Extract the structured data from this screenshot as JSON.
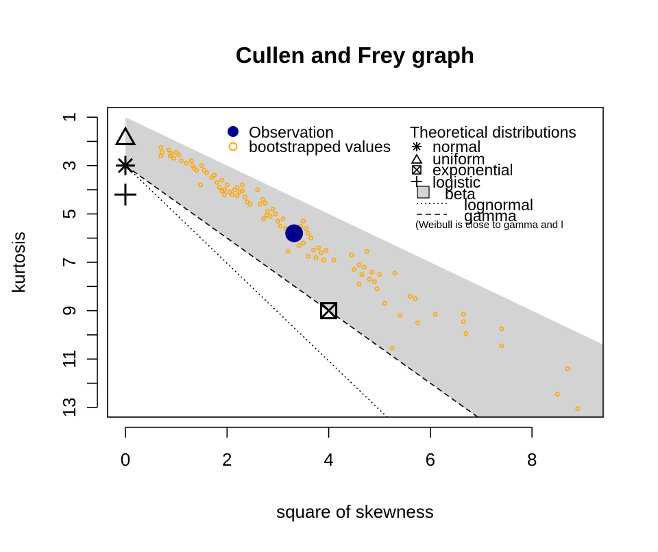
{
  "chart_data": {
    "type": "scatter",
    "title": "Cullen and Frey graph",
    "xlabel": "square of skewness",
    "ylabel": "kurtosis",
    "xlim": [
      -0.35,
      9.4
    ],
    "ylim": [
      13.4,
      0.6
    ],
    "y_axis_inverted": true,
    "x_ticks": [
      0,
      2,
      4,
      6,
      8
    ],
    "y_ticks": [
      1,
      3,
      5,
      7,
      9,
      11,
      13
    ],
    "x_tick_labels": [
      "0",
      "2",
      "4",
      "6",
      "8"
    ],
    "y_tick_labels": [
      "1",
      "3",
      "5",
      "7",
      "9",
      "11",
      "13"
    ],
    "grid": false,
    "colors": {
      "observation": "#00008b",
      "bootstrap": "#ffa500",
      "beta_region": "#d3d3d3",
      "axis": "#000000"
    },
    "observation": {
      "x": 3.32,
      "y": 5.8
    },
    "theoretical_points": {
      "normal": {
        "x": 0,
        "y": 3
      },
      "uniform": {
        "x": 0,
        "y": 1.8
      },
      "exponential": {
        "x": 4,
        "y": 9
      },
      "logistic": {
        "x": 0,
        "y": 4.2
      }
    },
    "bootstrapped_values": [
      [
        0.7,
        2.25
      ],
      [
        0.72,
        2.45
      ],
      [
        0.7,
        2.6
      ],
      [
        0.85,
        2.35
      ],
      [
        0.9,
        2.5
      ],
      [
        0.88,
        2.6
      ],
      [
        1.0,
        2.45
      ],
      [
        1.05,
        2.55
      ],
      [
        0.95,
        2.7
      ],
      [
        1.1,
        2.8
      ],
      [
        1.2,
        2.9
      ],
      [
        1.3,
        2.8
      ],
      [
        1.32,
        3.0
      ],
      [
        1.35,
        3.1
      ],
      [
        1.4,
        3.2
      ],
      [
        1.5,
        3.0
      ],
      [
        1.55,
        3.2
      ],
      [
        1.6,
        3.3
      ],
      [
        1.48,
        3.8
      ],
      [
        1.7,
        3.5
      ],
      [
        1.75,
        3.4
      ],
      [
        1.8,
        3.7
      ],
      [
        1.85,
        3.9
      ],
      [
        1.9,
        3.6
      ],
      [
        1.95,
        4.0
      ],
      [
        2.0,
        3.8
      ],
      [
        2.05,
        4.1
      ],
      [
        2.1,
        4.2
      ],
      [
        2.15,
        4.0
      ],
      [
        2.2,
        3.9
      ],
      [
        2.25,
        4.1
      ],
      [
        2.3,
        3.8
      ],
      [
        2.35,
        4.3
      ],
      [
        2.4,
        4.5
      ],
      [
        1.95,
        4.2
      ],
      [
        1.9,
        4.05
      ],
      [
        2.2,
        4.25
      ],
      [
        2.3,
        4.05
      ],
      [
        2.45,
        4.6
      ],
      [
        2.6,
        4.0
      ],
      [
        2.65,
        4.6
      ],
      [
        2.7,
        4.4
      ],
      [
        2.75,
        4.55
      ],
      [
        2.8,
        4.9
      ],
      [
        2.85,
        5.1
      ],
      [
        2.9,
        4.8
      ],
      [
        2.72,
        5.2
      ],
      [
        2.78,
        5.05
      ],
      [
        2.95,
        5.0
      ],
      [
        3.0,
        5.3
      ],
      [
        3.05,
        5.5
      ],
      [
        3.1,
        5.2
      ],
      [
        3.15,
        5.6
      ],
      [
        3.25,
        5.9
      ],
      [
        3.3,
        5.7
      ],
      [
        3.4,
        5.8
      ],
      [
        3.45,
        5.5
      ],
      [
        3.5,
        5.3
      ],
      [
        3.55,
        5.6
      ],
      [
        3.6,
        5.8
      ],
      [
        3.65,
        6.0
      ],
      [
        3.5,
        6.2
      ],
      [
        3.7,
        6.5
      ],
      [
        3.75,
        6.8
      ],
      [
        3.8,
        6.4
      ],
      [
        3.85,
        6.6
      ],
      [
        3.6,
        6.75
      ],
      [
        3.42,
        6.3
      ],
      [
        3.2,
        6.55
      ],
      [
        3.9,
        6.9
      ],
      [
        3.95,
        6.5
      ],
      [
        4.1,
        6.9
      ],
      [
        4.45,
        6.7
      ],
      [
        4.5,
        7.3
      ],
      [
        4.6,
        7.1
      ],
      [
        4.65,
        7.5
      ],
      [
        4.7,
        7.2
      ],
      [
        4.75,
        6.55
      ],
      [
        4.8,
        7.7
      ],
      [
        4.85,
        7.4
      ],
      [
        4.9,
        7.8
      ],
      [
        4.95,
        8.1
      ],
      [
        5.0,
        7.5
      ],
      [
        5.1,
        8.7
      ],
      [
        4.6,
        7.9
      ],
      [
        5.3,
        7.45
      ],
      [
        5.4,
        9.2
      ],
      [
        5.6,
        8.4
      ],
      [
        5.7,
        8.5
      ],
      [
        5.75,
        9.5
      ],
      [
        6.1,
        9.15
      ],
      [
        5.25,
        10.55
      ],
      [
        6.65,
        9.15
      ],
      [
        6.65,
        9.45
      ],
      [
        6.7,
        9.95
      ],
      [
        7.4,
        9.75
      ],
      [
        7.4,
        10.45
      ],
      [
        8.5,
        12.45
      ],
      [
        8.7,
        11.4
      ],
      [
        8.9,
        13.05
      ]
    ],
    "legend_left": {
      "placement": "top-center",
      "entries": [
        "Observation",
        "bootstrapped values"
      ]
    },
    "legend_right": {
      "placement": "top-right",
      "title": "Theoretical distributions",
      "entries": [
        "normal",
        "uniform",
        "exponential",
        "logistic",
        "beta",
        "lognormal",
        "gamma"
      ],
      "note": "(Weibull is close to gamma and l"
    }
  }
}
